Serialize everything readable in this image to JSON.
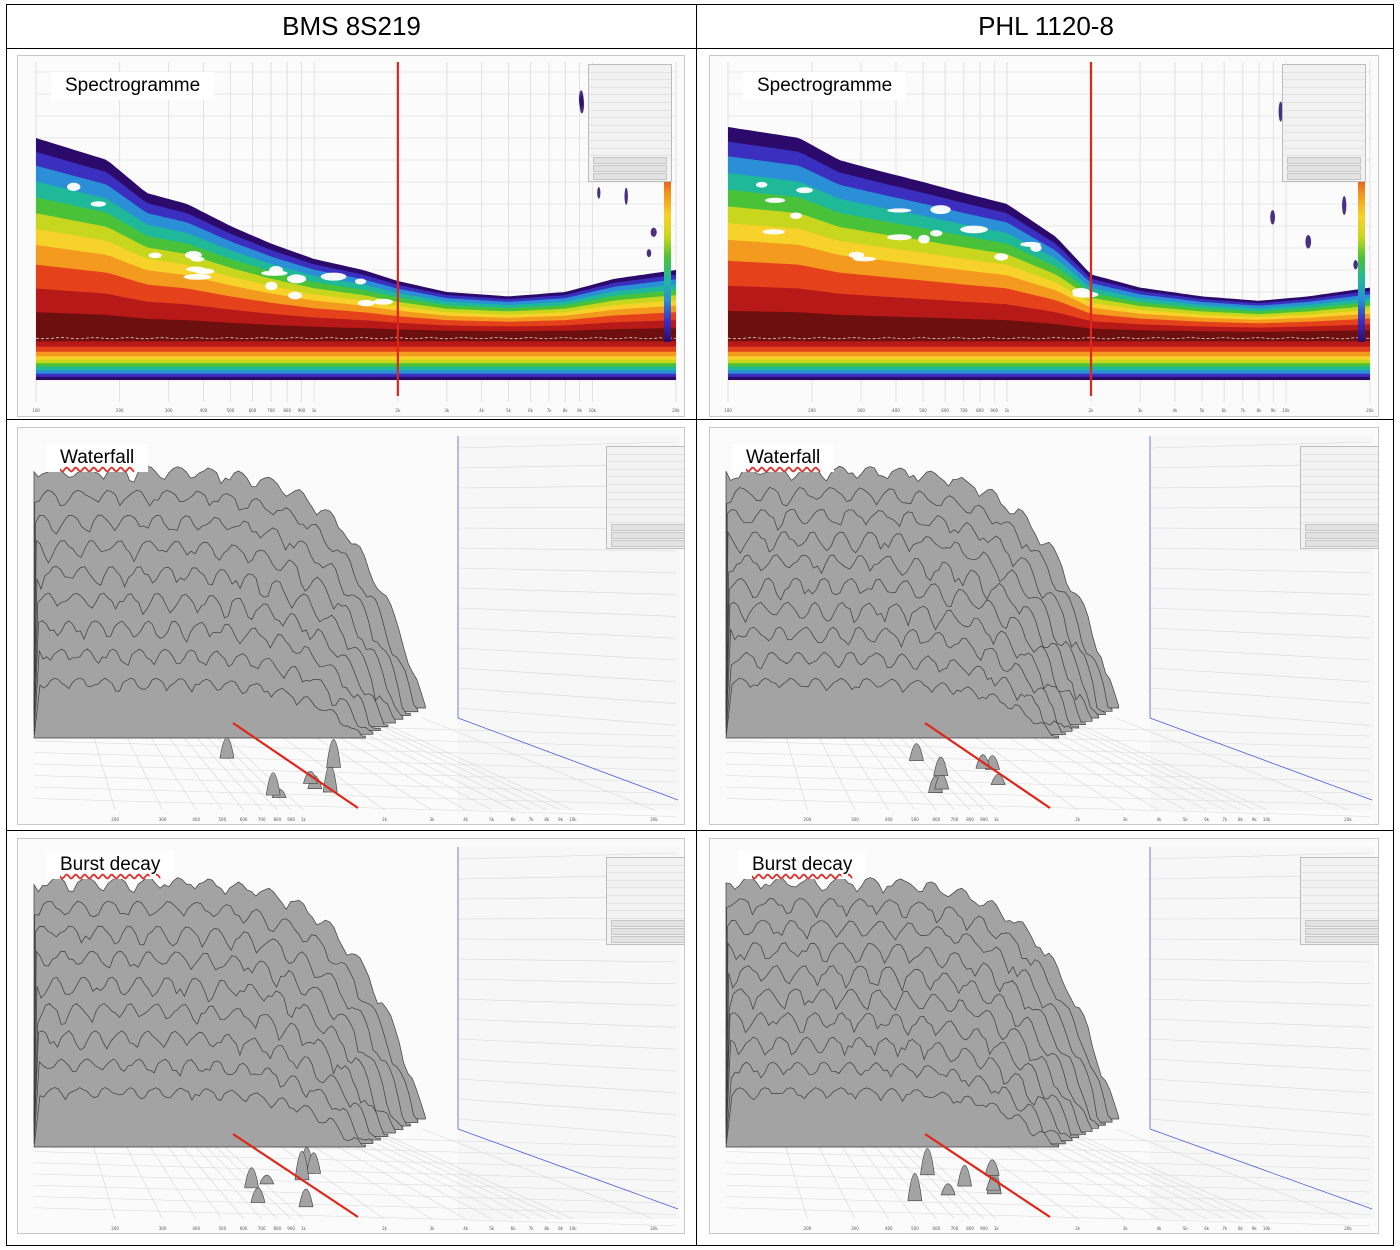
{
  "columns": [
    {
      "title": "BMS 8S219"
    },
    {
      "title": "PHL 1120-8"
    }
  ],
  "rows": [
    {
      "label": "Spectrogramme",
      "kind": "spectrogram"
    },
    {
      "label": "Waterfall",
      "kind": "waterfall"
    },
    {
      "label": "Burst decay",
      "kind": "burst"
    }
  ],
  "colors": {
    "marker_line": "#e0251b",
    "waterfall_fill": "#a3a3a3",
    "waterfall_stroke": "#3c3c3c",
    "grid": "#d7d7d7",
    "axis_blue": "#4a5de0"
  },
  "spectro_colormap": [
    "#2b0a6b",
    "#3b2fc0",
    "#2a8fd6",
    "#1fb99a",
    "#49c23a",
    "#c8d61d",
    "#f7d22a",
    "#f39a1f",
    "#e5421b",
    "#b71818",
    "#6e0f0f"
  ],
  "chart_data": [
    {
      "type": "heatmap",
      "name": "spectrogram-left",
      "column": "BMS 8S219",
      "title": "Spectrogramme",
      "x_scale": "log",
      "x_range": [
        100,
        20000
      ],
      "x_ticks": [
        "100",
        "200",
        "300",
        "400",
        "500",
        "600",
        "700",
        "800",
        "900",
        "1k",
        "2k",
        "3k",
        "4k",
        "5k",
        "6k",
        "7k",
        "8k",
        "9k",
        "10k",
        "20k"
      ],
      "marker_freq_hz": 2000,
      "decay_profile": [
        {
          "freq_hz": 100,
          "decay_ms": 9.0
        },
        {
          "freq_hz": 180,
          "decay_ms": 8.0
        },
        {
          "freq_hz": 250,
          "decay_ms": 6.5
        },
        {
          "freq_hz": 350,
          "decay_ms": 6.0
        },
        {
          "freq_hz": 500,
          "decay_ms": 5.0
        },
        {
          "freq_hz": 700,
          "decay_ms": 4.2
        },
        {
          "freq_hz": 1000,
          "decay_ms": 3.5
        },
        {
          "freq_hz": 1500,
          "decay_ms": 3.0
        },
        {
          "freq_hz": 2000,
          "decay_ms": 2.5
        },
        {
          "freq_hz": 3000,
          "decay_ms": 2.0
        },
        {
          "freq_hz": 5000,
          "decay_ms": 1.8
        },
        {
          "freq_hz": 8000,
          "decay_ms": 2.0
        },
        {
          "freq_hz": 12000,
          "decay_ms": 2.6
        },
        {
          "freq_hz": 20000,
          "decay_ms": 3.0
        }
      ]
    },
    {
      "type": "heatmap",
      "name": "spectrogram-right",
      "column": "PHL 1120-8",
      "title": "Spectrogramme",
      "x_scale": "log",
      "x_range": [
        100,
        20000
      ],
      "x_ticks": [
        "100",
        "200",
        "300",
        "400",
        "500",
        "600",
        "700",
        "800",
        "900",
        "1k",
        "2k",
        "3k",
        "4k",
        "5k",
        "6k",
        "7k",
        "8k",
        "9k",
        "10k",
        "20k"
      ],
      "marker_freq_hz": 2000,
      "decay_profile": [
        {
          "freq_hz": 100,
          "decay_ms": 9.5
        },
        {
          "freq_hz": 180,
          "decay_ms": 9.0
        },
        {
          "freq_hz": 250,
          "decay_ms": 8.0
        },
        {
          "freq_hz": 350,
          "decay_ms": 7.5
        },
        {
          "freq_hz": 500,
          "decay_ms": 7.0
        },
        {
          "freq_hz": 700,
          "decay_ms": 6.5
        },
        {
          "freq_hz": 1000,
          "decay_ms": 6.0
        },
        {
          "freq_hz": 1500,
          "decay_ms": 4.5
        },
        {
          "freq_hz": 2000,
          "decay_ms": 2.8
        },
        {
          "freq_hz": 3000,
          "decay_ms": 2.2
        },
        {
          "freq_hz": 5000,
          "decay_ms": 1.8
        },
        {
          "freq_hz": 8000,
          "decay_ms": 1.6
        },
        {
          "freq_hz": 12000,
          "decay_ms": 1.8
        },
        {
          "freq_hz": 20000,
          "decay_ms": 2.2
        }
      ]
    },
    {
      "type": "area",
      "name": "waterfall-left",
      "column": "BMS 8S219",
      "title": "Waterfall",
      "x_scale": "log",
      "x_range": [
        100,
        20000
      ],
      "x_ticks": [
        "200",
        "300",
        "400",
        "500",
        "600",
        "700",
        "800",
        "900",
        "1k",
        "2k",
        "3k",
        "4k",
        "5k",
        "6k",
        "7k",
        "8k",
        "9k",
        "10k",
        "20k"
      ],
      "cutoff_freq_hz": 5000,
      "slices": 9
    },
    {
      "type": "area",
      "name": "waterfall-right",
      "column": "PHL 1120-8",
      "title": "Waterfall",
      "x_scale": "log",
      "x_range": [
        100,
        20000
      ],
      "x_ticks": [
        "200",
        "300",
        "400",
        "500",
        "600",
        "700",
        "800",
        "900",
        "1k",
        "2k",
        "3k",
        "4k",
        "5k",
        "6k",
        "7k",
        "8k",
        "9k",
        "10k",
        "20k"
      ],
      "cutoff_freq_hz": 5000,
      "slices": 10
    },
    {
      "type": "area",
      "name": "burst-left",
      "column": "BMS 8S219",
      "title": "Burst decay",
      "x_scale": "log",
      "x_range": [
        100,
        20000
      ],
      "x_ticks": [
        "200",
        "300",
        "400",
        "500",
        "600",
        "700",
        "800",
        "900",
        "1k",
        "2k",
        "3k",
        "4k",
        "5k",
        "6k",
        "7k",
        "8k",
        "9k",
        "10k",
        "20k"
      ],
      "cutoff_freq_hz": 5000,
      "slices": 9
    },
    {
      "type": "area",
      "name": "burst-right",
      "column": "PHL 1120-8",
      "title": "Burst decay",
      "x_scale": "log",
      "x_range": [
        100,
        20000
      ],
      "x_ticks": [
        "200",
        "300",
        "400",
        "500",
        "600",
        "700",
        "800",
        "900",
        "1k",
        "2k",
        "3k",
        "4k",
        "5k",
        "6k",
        "7k",
        "8k",
        "9k",
        "10k",
        "20k"
      ],
      "cutoff_freq_hz": 5000,
      "slices": 10
    }
  ]
}
